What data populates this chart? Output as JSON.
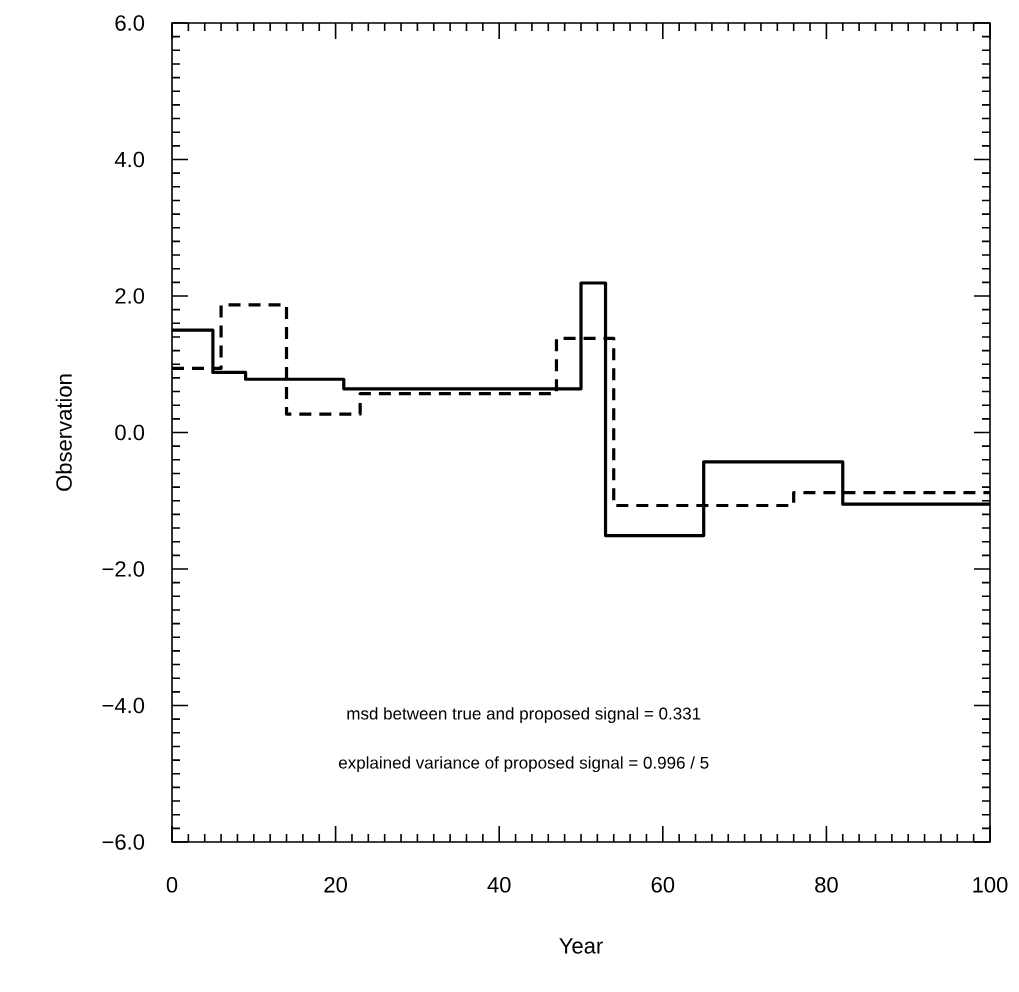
{
  "chart_data": {
    "type": "step",
    "xlabel": "Year",
    "ylabel": "Observation",
    "xlim": [
      0,
      100
    ],
    "ylim": [
      -6,
      6
    ],
    "xticks": [
      0,
      20,
      40,
      60,
      80,
      100
    ],
    "yticks": [
      {
        "value": -6,
        "label": "−6.0"
      },
      {
        "value": -4,
        "label": "−4.0"
      },
      {
        "value": -2,
        "label": "−2.0"
      },
      {
        "value": 0,
        "label": "0.0"
      },
      {
        "value": 2,
        "label": "2.0"
      },
      {
        "value": 4,
        "label": "4.0"
      },
      {
        "value": 6,
        "label": "6.0"
      }
    ],
    "grid": false,
    "marker": "none",
    "series": [
      {
        "color": "#000000",
        "line_style": "solid",
        "x": [
          0,
          5,
          9,
          21,
          50,
          53,
          65,
          82,
          100
        ],
        "values": [
          1.5,
          0.88,
          0.78,
          0.64,
          2.19,
          -1.51,
          -0.43,
          -1.05,
          -1.05
        ]
      },
      {
        "color": "#000000",
        "line_style": "dashed",
        "x": [
          0,
          6,
          14,
          23,
          47,
          54,
          76,
          100
        ],
        "values": [
          0.94,
          1.87,
          0.27,
          0.57,
          1.38,
          -1.07,
          -0.88,
          -0.88
        ]
      }
    ],
    "annotations": [
      "msd between true and proposed signal = 0.331",
      "explained variance of proposed signal = 0.996 / 5"
    ]
  }
}
